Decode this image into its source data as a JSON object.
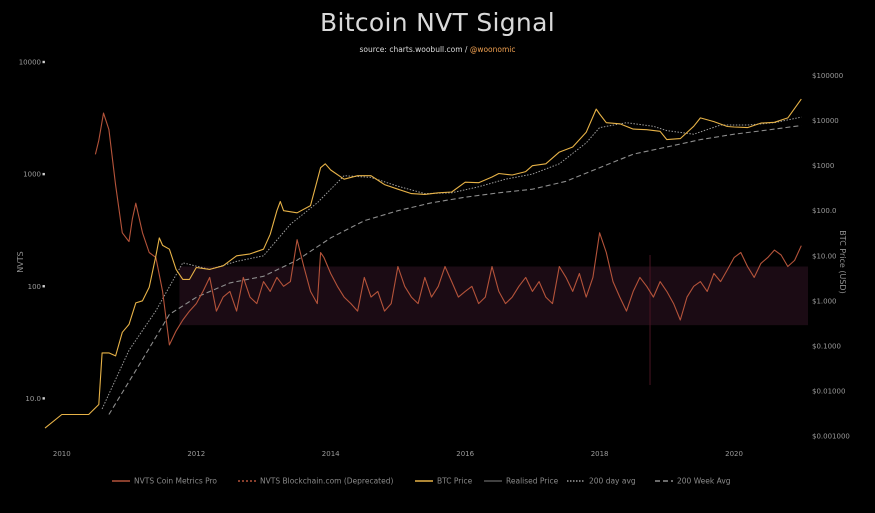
{
  "chart_data": {
    "type": "line",
    "title": "Bitcoin NVT Signal",
    "subtitle": {
      "prefix": "source: charts.woobull.com / ",
      "handle": "@woonomic"
    },
    "ylabel_left": "NVTS",
    "ylabel_right": "BTC Price (USD)",
    "left_scale": "log",
    "right_scale": "log",
    "ylim_left": [
      4,
      10000
    ],
    "ylim_right": [
      0.0007,
      200000
    ],
    "left_ticks": [
      {
        "v": 10,
        "label": "10.0"
      },
      {
        "v": 100,
        "label": "100"
      },
      {
        "v": 1000,
        "label": "1000"
      },
      {
        "v": 10000,
        "label": "10000"
      }
    ],
    "right_ticks": [
      {
        "v": 0.001,
        "label": "$0.001000"
      },
      {
        "v": 0.01,
        "label": "$0.01000"
      },
      {
        "v": 0.1,
        "label": "$0.1000"
      },
      {
        "v": 1,
        "label": "$1.000"
      },
      {
        "v": 10,
        "label": "$10.00"
      },
      {
        "v": 100,
        "label": "$100.0"
      },
      {
        "v": 1000,
        "label": "$1000"
      },
      {
        "v": 10000,
        "label": "$10000"
      },
      {
        "v": 100000,
        "label": "$100000"
      }
    ],
    "x_ticks": [
      "2010",
      "2012",
      "2014",
      "2016",
      "2018",
      "2020"
    ],
    "xlim": [
      2009.75,
      2021.1
    ],
    "band_nvts": [
      45,
      150
    ],
    "marker_x": 2018.75,
    "colors": {
      "nvts": "#b4533a",
      "btc": "#e7b247",
      "realised": "#2a2a2a",
      "ma200d": "#9b9b9b",
      "ma200w": "#8d8d8d",
      "band": "#1b0b14"
    },
    "series": [
      {
        "name": "NVTS Coin Metrics Pro",
        "axis": "left",
        "x": [
          2010.5,
          2010.55,
          2010.62,
          2010.7,
          2010.8,
          2010.9,
          2011.0,
          2011.05,
          2011.1,
          2011.2,
          2011.3,
          2011.4,
          2011.5,
          2011.6,
          2011.7,
          2011.8,
          2011.9,
          2012.0,
          2012.1,
          2012.2,
          2012.3,
          2012.4,
          2012.5,
          2012.6,
          2012.7,
          2012.8,
          2012.9,
          2013.0,
          2013.1,
          2013.2,
          2013.3,
          2013.4,
          2013.5,
          2013.6,
          2013.7,
          2013.8,
          2013.85,
          2013.9,
          2014.0,
          2014.1,
          2014.2,
          2014.3,
          2014.4,
          2014.5,
          2014.6,
          2014.7,
          2014.8,
          2014.9,
          2015.0,
          2015.1,
          2015.2,
          2015.3,
          2015.4,
          2015.5,
          2015.6,
          2015.7,
          2015.8,
          2015.9,
          2016.0,
          2016.1,
          2016.2,
          2016.3,
          2016.4,
          2016.5,
          2016.6,
          2016.7,
          2016.8,
          2016.9,
          2017.0,
          2017.1,
          2017.2,
          2017.3,
          2017.4,
          2017.5,
          2017.6,
          2017.7,
          2017.8,
          2017.9,
          2018.0,
          2018.1,
          2018.2,
          2018.3,
          2018.4,
          2018.5,
          2018.6,
          2018.7,
          2018.8,
          2018.9,
          2019.0,
          2019.1,
          2019.2,
          2019.3,
          2019.4,
          2019.5,
          2019.6,
          2019.7,
          2019.8,
          2019.9,
          2020.0,
          2020.1,
          2020.2,
          2020.3,
          2020.4,
          2020.5,
          2020.6,
          2020.7,
          2020.8,
          2020.9,
          2021.0
        ],
        "y": [
          1500,
          2000,
          3500,
          2500,
          800,
          300,
          250,
          400,
          550,
          300,
          200,
          180,
          90,
          30,
          40,
          50,
          60,
          70,
          90,
          120,
          60,
          80,
          90,
          60,
          120,
          80,
          70,
          110,
          90,
          120,
          100,
          110,
          260,
          150,
          90,
          70,
          200,
          180,
          130,
          100,
          80,
          70,
          60,
          120,
          80,
          90,
          60,
          70,
          150,
          100,
          80,
          70,
          120,
          80,
          100,
          150,
          110,
          80,
          90,
          100,
          70,
          80,
          150,
          90,
          70,
          80,
          100,
          120,
          90,
          110,
          80,
          70,
          150,
          120,
          90,
          130,
          80,
          120,
          300,
          200,
          110,
          80,
          60,
          90,
          120,
          100,
          80,
          110,
          90,
          70,
          50,
          80,
          100,
          110,
          90,
          130,
          110,
          140,
          180,
          200,
          150,
          120,
          160,
          180,
          210,
          190,
          150,
          170,
          230
        ]
      },
      {
        "name": "NVTS Blockchain.com (Deprecated)",
        "axis": "left",
        "x": [],
        "y": []
      },
      {
        "name": "BTC Price",
        "axis": "right",
        "x": [
          2009.75,
          2010.0,
          2010.2,
          2010.4,
          2010.55,
          2010.6,
          2010.7,
          2010.8,
          2010.9,
          2011.0,
          2011.1,
          2011.2,
          2011.3,
          2011.4,
          2011.45,
          2011.5,
          2011.6,
          2011.7,
          2011.8,
          2011.9,
          2012.0,
          2012.2,
          2012.4,
          2012.6,
          2012.8,
          2013.0,
          2013.1,
          2013.2,
          2013.25,
          2013.3,
          2013.5,
          2013.7,
          2013.85,
          2013.92,
          2014.0,
          2014.2,
          2014.4,
          2014.6,
          2014.8,
          2015.0,
          2015.2,
          2015.4,
          2015.6,
          2015.8,
          2016.0,
          2016.2,
          2016.4,
          2016.5,
          2016.7,
          2016.9,
          2017.0,
          2017.2,
          2017.4,
          2017.6,
          2017.8,
          2017.95,
          2018.0,
          2018.1,
          2018.3,
          2018.5,
          2018.7,
          2018.9,
          2019.0,
          2019.2,
          2019.4,
          2019.5,
          2019.7,
          2019.9,
          2020.0,
          2020.2,
          2020.4,
          2020.6,
          2020.8,
          2021.0
        ],
        "y": [
          0.0015,
          0.003,
          0.003,
          0.003,
          0.005,
          0.07,
          0.07,
          0.06,
          0.2,
          0.3,
          0.9,
          1,
          2,
          10,
          25,
          17,
          14,
          5,
          3,
          3,
          5.5,
          5,
          6,
          10,
          11,
          14,
          30,
          100,
          160,
          100,
          90,
          130,
          900,
          1100,
          800,
          500,
          600,
          600,
          380,
          300,
          240,
          230,
          250,
          260,
          430,
          420,
          560,
          670,
          620,
          740,
          1000,
          1100,
          2000,
          2600,
          5500,
          18000,
          14000,
          9000,
          8500,
          6500,
          6300,
          5800,
          3800,
          4000,
          7500,
          11500,
          9500,
          7400,
          7200,
          7000,
          8800,
          9200,
          11500,
          30000
        ]
      },
      {
        "name": "Realised Price",
        "axis": "right",
        "x": [],
        "y": []
      },
      {
        "name": "200 day avg",
        "axis": "right",
        "x": [
          2010.6,
          2011.0,
          2011.4,
          2011.8,
          2012.2,
          2012.6,
          2013.0,
          2013.4,
          2013.8,
          2014.2,
          2014.6,
          2015.0,
          2015.4,
          2015.8,
          2016.2,
          2016.6,
          2017.0,
          2017.4,
          2017.8,
          2018.0,
          2018.4,
          2018.8,
          2019.0,
          2019.4,
          2019.8,
          2020.2,
          2020.6,
          2021.0
        ],
        "y": [
          0.004,
          0.08,
          0.6,
          7,
          5,
          7.5,
          10,
          50,
          150,
          600,
          550,
          350,
          240,
          250,
          340,
          500,
          650,
          1100,
          3200,
          7000,
          9000,
          7500,
          6000,
          5000,
          8000,
          8000,
          9000,
          12000
        ]
      },
      {
        "name": "200 Week Avg",
        "axis": "right",
        "x": [
          2010.7,
          2011.2,
          2011.6,
          2012.0,
          2012.5,
          2013.0,
          2013.5,
          2014.0,
          2014.5,
          2015.0,
          2015.5,
          2016.0,
          2016.5,
          2017.0,
          2017.5,
          2018.0,
          2018.5,
          2019.0,
          2019.5,
          2020.0,
          2020.5,
          2021.0
        ],
        "y": [
          0.003,
          0.05,
          0.5,
          1.2,
          2.5,
          3.5,
          8,
          25,
          60,
          100,
          150,
          200,
          250,
          300,
          450,
          900,
          1800,
          2600,
          3800,
          5000,
          6200,
          7800
        ]
      }
    ]
  }
}
